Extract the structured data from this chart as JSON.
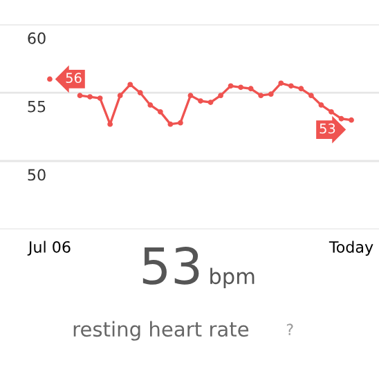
{
  "chart_data": {
    "type": "line",
    "categories": [
      "Jul 06",
      null,
      null,
      null,
      null,
      null,
      null,
      null,
      null,
      null,
      null,
      null,
      null,
      null,
      null,
      null,
      null,
      null,
      null,
      null,
      null,
      null,
      null,
      null,
      null,
      null,
      null,
      null,
      null,
      null,
      "Today"
    ],
    "series": [
      {
        "color": "#ef5350",
        "values": [
          56,
          null,
          null,
          54.8,
          54.7,
          54.6,
          52.7,
          54.8,
          55.6,
          55.0,
          54.1,
          53.6,
          52.7,
          52.8,
          54.8,
          54.4,
          54.3,
          54.8,
          55.5,
          55.4,
          55.3,
          54.8,
          54.9,
          55.7,
          55.5,
          55.3,
          54.8,
          54.1,
          53.6,
          53.1,
          53
        ],
        "value_labels": [
          "56",
          null,
          null,
          null,
          null,
          null,
          null,
          null,
          null,
          null,
          null,
          null,
          null,
          null,
          null,
          null,
          null,
          null,
          null,
          null,
          null,
          null,
          null,
          null,
          null,
          null,
          null,
          null,
          null,
          null,
          "53"
        ]
      }
    ],
    "ylim": [
      45,
      60
    ],
    "yticks": [
      {
        "value": 45,
        "label": null
      },
      50,
      55,
      60
    ],
    "grid": "y",
    "marker": "circle",
    "line_style": "solid",
    "annotations": [
      "53",
      "bpm",
      "resting heart rate",
      "?"
    ]
  }
}
